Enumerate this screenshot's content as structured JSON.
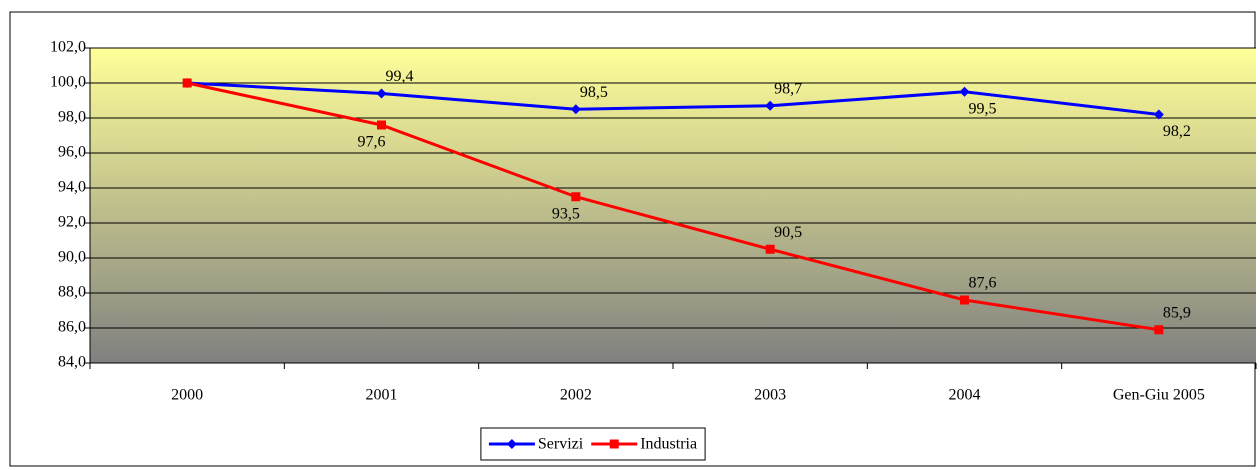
{
  "chart_data": {
    "type": "line",
    "categories": [
      "2000",
      "2001",
      "2002",
      "2003",
      "2004",
      "Gen-Giu 2005"
    ],
    "series": [
      {
        "name": "Servizi",
        "color": "#0000ff",
        "marker": "diamond",
        "values": [
          100,
          99.4,
          98.5,
          98.7,
          99.5,
          98.2
        ],
        "value_labels": [
          null,
          "99,4",
          "98,5",
          "98,7",
          "99,5",
          "98,2"
        ]
      },
      {
        "name": "Industria",
        "color": "#ff0000",
        "marker": "square",
        "values": [
          100,
          97.6,
          93.5,
          90.5,
          87.6,
          85.9
        ],
        "value_labels": [
          null,
          "97,6",
          "93,5",
          "90,5",
          "87,6",
          "85,9"
        ]
      }
    ],
    "ylim": [
      84,
      102
    ],
    "yticks": [
      {
        "value": 84,
        "label": "84,0"
      },
      {
        "value": 86,
        "label": "86,0"
      },
      {
        "value": 88,
        "label": "88,0"
      },
      {
        "value": 90,
        "label": "90,0"
      },
      {
        "value": 92,
        "label": "92,0"
      },
      {
        "value": 94,
        "label": "94,0"
      },
      {
        "value": 96,
        "label": "96,0"
      },
      {
        "value": 98,
        "label": "98,0"
      },
      {
        "value": 100,
        "label": "100,0"
      },
      {
        "value": 102,
        "label": "102,0"
      }
    ],
    "grid": true,
    "legend": "bottom"
  }
}
